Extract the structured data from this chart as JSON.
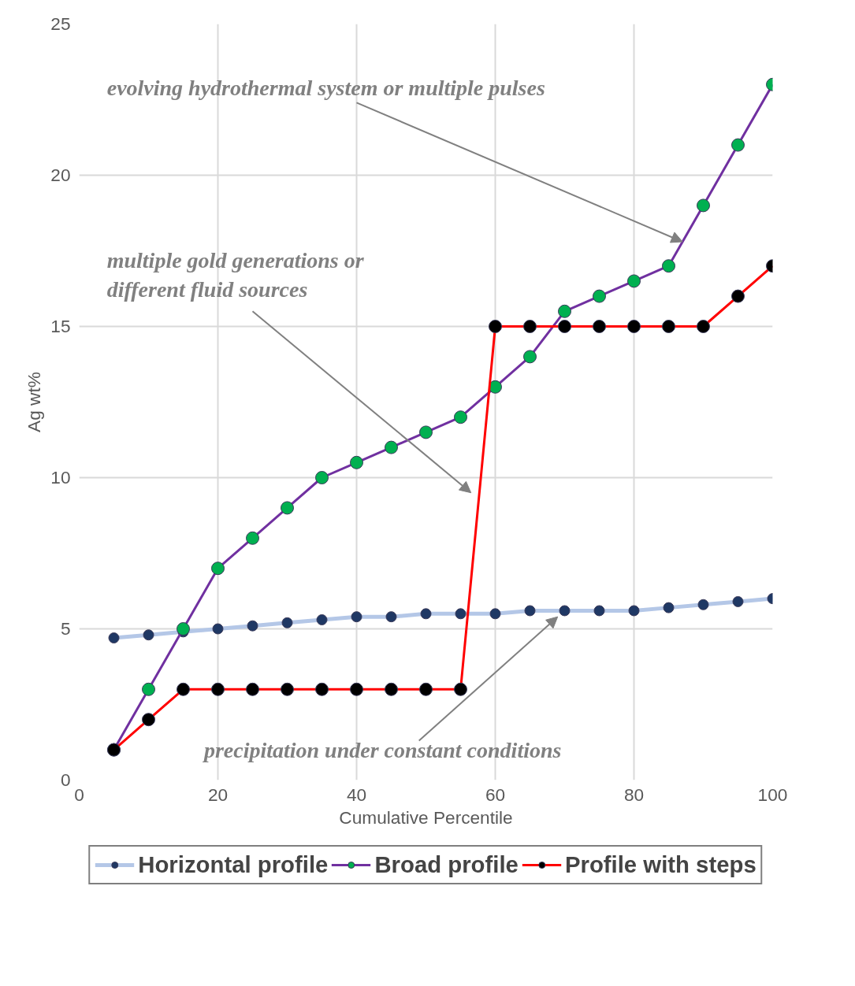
{
  "chart_data": {
    "type": "line",
    "xlabel": "Cumulative Percentile",
    "ylabel": "Ag wt%",
    "x": [
      5,
      10,
      15,
      20,
      25,
      30,
      35,
      40,
      45,
      50,
      55,
      60,
      65,
      70,
      75,
      80,
      85,
      90,
      95,
      100
    ],
    "series": [
      {
        "name": "Horizontal profile",
        "color": "#b4c7e7",
        "values": [
          4.7,
          4.8,
          4.9,
          5.0,
          5.1,
          5.2,
          5.3,
          5.4,
          5.4,
          5.5,
          5.5,
          5.5,
          5.6,
          5.6,
          5.6,
          5.6,
          5.7,
          5.8,
          5.9,
          6.0
        ]
      },
      {
        "name": "Broad profile",
        "color": "#7030a0",
        "values": [
          1,
          3,
          5,
          7,
          8,
          9,
          10,
          10.5,
          11,
          11.5,
          12,
          13,
          14,
          15.5,
          16,
          16.5,
          17,
          19,
          21,
          23
        ]
      },
      {
        "name": "Profile with steps",
        "color": "#ff0000",
        "values": [
          1,
          2,
          3,
          3,
          3,
          3,
          3,
          3,
          3,
          3,
          3,
          15,
          15,
          15,
          15,
          15,
          15,
          15,
          16,
          17
        ]
      }
    ],
    "xlim": [
      0,
      100
    ],
    "ylim": [
      0,
      25
    ],
    "xticks": [
      0,
      20,
      40,
      60,
      80,
      100
    ],
    "yticks": [
      0,
      5,
      10,
      15,
      20,
      25
    ],
    "grid": true,
    "legend": "bottom",
    "marker": "circle",
    "line_style": "solid",
    "annotations": [
      {
        "text": "evolving hydrothermal system or multiple pulses",
        "x": 87,
        "y": 17.8
      },
      "multiple gold generations or\ndifferent fluid sources",
      {
        "text": "precipitation under constant conditions",
        "x": 69,
        "y": 5.4
      }
    ]
  }
}
